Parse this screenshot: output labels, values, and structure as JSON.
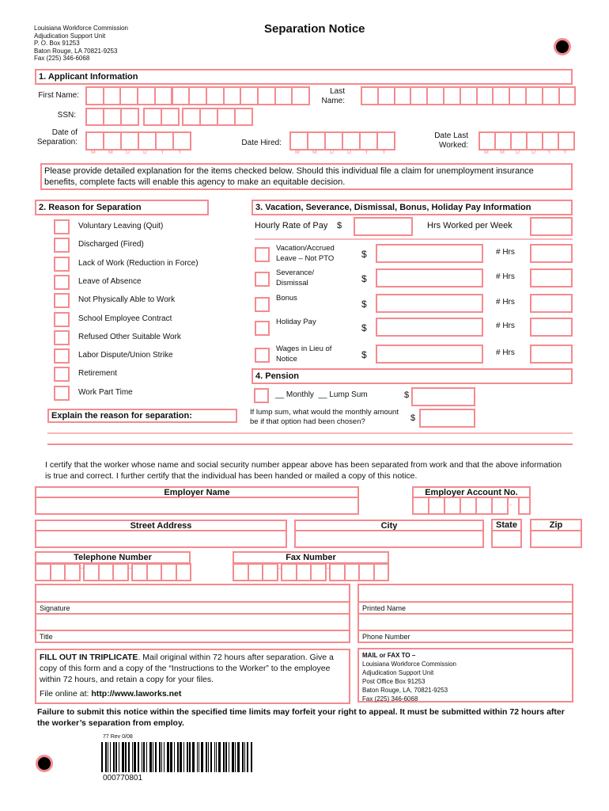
{
  "agency": {
    "lines": [
      "Louisiana Workforce Commission",
      "Adjudication Support Unit",
      "P. O. Box 91253",
      "Baton Rouge, LA 70821-9253",
      "Fax (225) 346-6068"
    ]
  },
  "title": "Separation Notice",
  "colors": {
    "accent": "#f58a8f"
  },
  "section1": {
    "title": "1. Applicant Information",
    "first_name": "First Name:",
    "last_name_1": "Last",
    "last_name_2": "Name:",
    "ssn": "SSN:",
    "date_sep_1": "Date of",
    "date_sep_2": "Separation:",
    "date_hired": "Date Hired:",
    "date_last_1": "Date Last",
    "date_last_2": "Worked:",
    "date_format": [
      "M",
      "M",
      "D",
      "D",
      "Y",
      "Y"
    ]
  },
  "instructions": "Please provide detailed explanation for the items checked below. Should this individual file a claim for unemployment insurance benefits, complete facts will enable this agency to make an equitable decision.",
  "section2": {
    "title": "2. Reason for Separation",
    "reasons": [
      "Voluntary Leaving (Quit)",
      "Discharged (Fired)",
      "Lack of Work (Reduction in Force)",
      "Leave of Absence",
      "Not Physically Able to Work",
      "School Employee Contract",
      "Refused Other Suitable Work",
      "Labor Dispute/Union Strike",
      "Retirement",
      "Work Part Time"
    ],
    "explain": "Explain the reason for separation:"
  },
  "section3": {
    "title": "3. Vacation, Severance, Dismissal, Bonus, Holiday Pay Information",
    "hourly": "Hourly Rate of Pay",
    "dollar": "$",
    "hrs_week": "Hrs Worked per Week",
    "hrs": "# Hrs",
    "items": [
      [
        "Vacation/Accrued",
        "Leave – Not PTO"
      ],
      [
        "Severance/",
        "Dismissal"
      ],
      [
        "Bonus",
        ""
      ],
      [
        "Holiday Pay",
        ""
      ],
      [
        "Wages in Lieu of",
        "Notice"
      ]
    ]
  },
  "section4": {
    "title": "4. Pension",
    "options": "__ Monthly  __ Lump Sum",
    "question_1": "If lump sum, what would the monthly amount",
    "question_2": "be if that option had been chosen?"
  },
  "certify": "I certify that the worker whose name and social security number appear above has been separated from work and that the above information is true and correct. I further certify that the individual has been handed or mailed a copy of this notice.",
  "employer": {
    "name": "Employer Name",
    "account": "Employer Account No.",
    "street": "Street Address",
    "city": "City",
    "state": "State",
    "zip": "Zip",
    "phone": "Telephone Number",
    "fax": "Fax Number",
    "signature": "Signature",
    "printed": "Printed Name",
    "title": "Title",
    "phone_number": "Phone Number",
    "dash": "-"
  },
  "footer": {
    "fill_bold": "FILL OUT IN TRIPLICATE",
    "fill_rest": ". Mail original within 72 hours after separation. Give a copy of this form and a copy of the “Instructions to the Worker” to the employee within 72 hours, and retain a copy for your files.",
    "online_label": "File online at: ",
    "online_url": "http://www.laworks.net",
    "mail_title": "MAIL or FAX TO –",
    "mail_lines": [
      "Louisiana Workforce Commission",
      "Adjudication Support Unit",
      "Post Office Box 91253",
      "Baton Rouge, LA, 70821-9253",
      "Fax (225) 346-6068"
    ],
    "warning": "Failure to submit this notice within the specified time limits may forfeit your right to appeal. It must be submitted within 72 hours after the worker’s separation from employ.",
    "rev": "77 Rev 0/08",
    "barcode_number": "000770801"
  }
}
